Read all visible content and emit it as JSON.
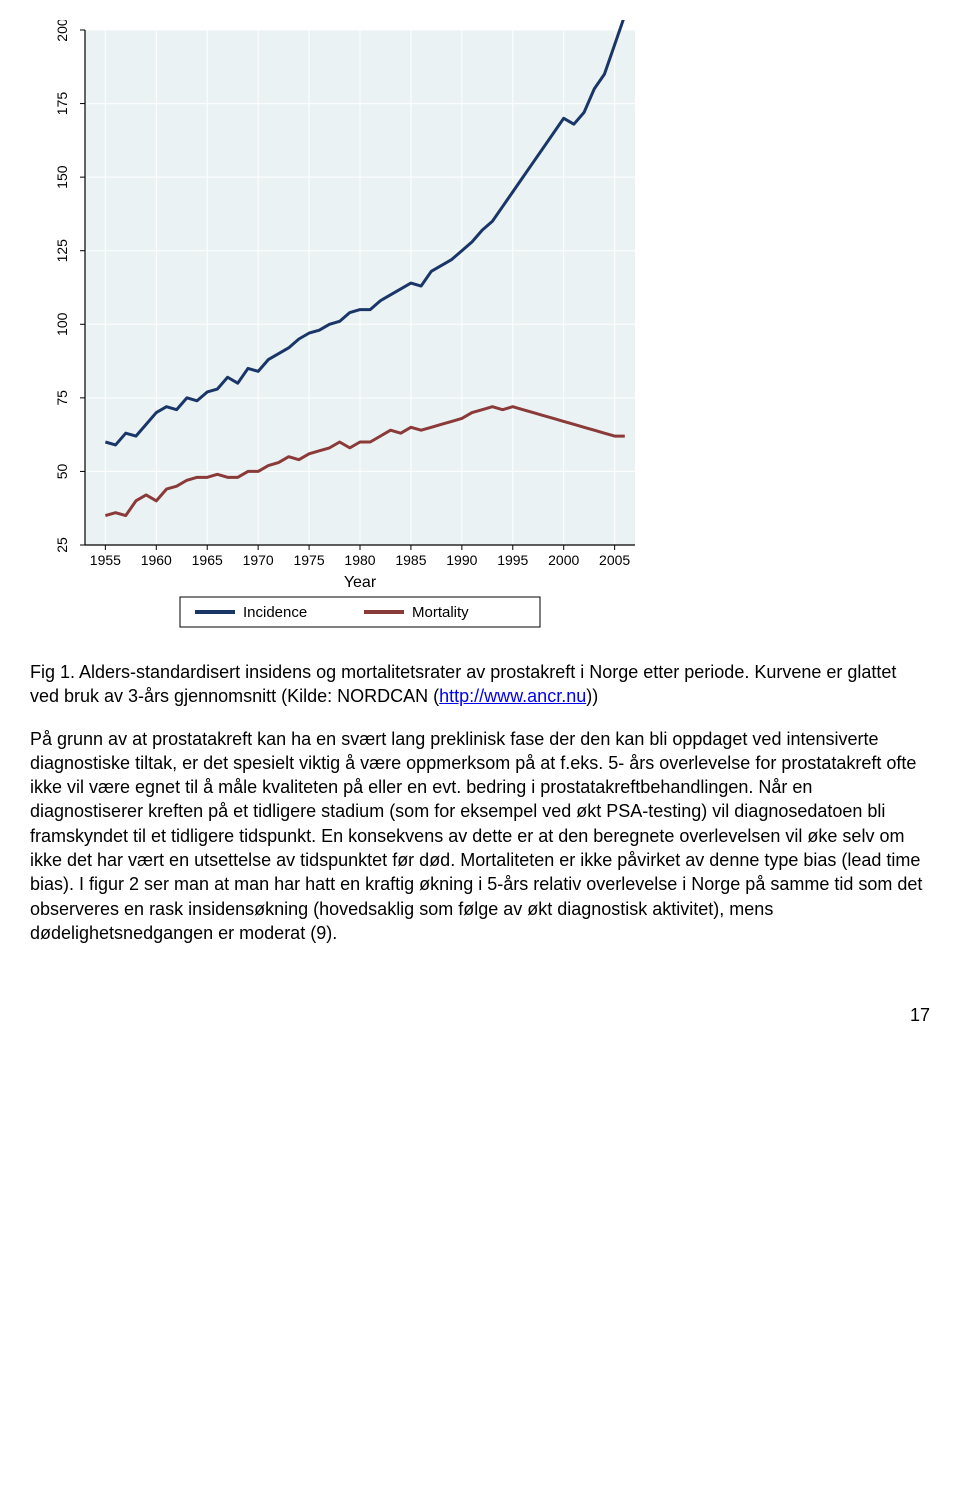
{
  "chart": {
    "type": "line",
    "plot_background": "#eaf2f3",
    "frame_color": "#ffffff",
    "grid_color": "#ffffff",
    "axis_line_color": "#000000",
    "xlabel": "Year",
    "xlabel_fontsize": 16,
    "ylabel": "",
    "xlim": [
      1953,
      2007
    ],
    "ylim": [
      25,
      200
    ],
    "xticks": [
      1955,
      1960,
      1965,
      1970,
      1975,
      1980,
      1985,
      1990,
      1995,
      2000,
      2005
    ],
    "yticks": [
      25,
      50,
      75,
      100,
      125,
      150,
      175,
      200
    ],
    "tick_fontsize": 14,
    "line_width": 3,
    "series": [
      {
        "name": "Incidence",
        "color": "#1a3668",
        "x": [
          1955,
          1956,
          1957,
          1958,
          1959,
          1960,
          1961,
          1962,
          1963,
          1964,
          1965,
          1966,
          1967,
          1968,
          1969,
          1970,
          1971,
          1972,
          1973,
          1974,
          1975,
          1976,
          1977,
          1978,
          1979,
          1980,
          1981,
          1982,
          1983,
          1984,
          1985,
          1986,
          1987,
          1988,
          1989,
          1990,
          1991,
          1992,
          1993,
          1994,
          1995,
          1996,
          1997,
          1998,
          1999,
          2000,
          2001,
          2002,
          2003,
          2004,
          2005,
          2006
        ],
        "y": [
          60,
          59,
          63,
          62,
          66,
          70,
          72,
          71,
          75,
          74,
          77,
          78,
          82,
          80,
          85,
          84,
          88,
          90,
          92,
          95,
          97,
          98,
          100,
          101,
          104,
          105,
          105,
          108,
          110,
          112,
          114,
          113,
          118,
          120,
          122,
          125,
          128,
          132,
          135,
          140,
          145,
          150,
          155,
          160,
          165,
          170,
          168,
          172,
          180,
          185,
          195,
          205
        ]
      },
      {
        "name": "Mortality",
        "color": "#8b3a3a",
        "x": [
          1955,
          1956,
          1957,
          1958,
          1959,
          1960,
          1961,
          1962,
          1963,
          1964,
          1965,
          1966,
          1967,
          1968,
          1969,
          1970,
          1971,
          1972,
          1973,
          1974,
          1975,
          1976,
          1977,
          1978,
          1979,
          1980,
          1981,
          1982,
          1983,
          1984,
          1985,
          1986,
          1987,
          1988,
          1989,
          1990,
          1991,
          1992,
          1993,
          1994,
          1995,
          1996,
          1997,
          1998,
          1999,
          2000,
          2001,
          2002,
          2003,
          2004,
          2005,
          2006
        ],
        "y": [
          35,
          36,
          35,
          40,
          42,
          40,
          44,
          45,
          47,
          48,
          48,
          49,
          48,
          48,
          50,
          50,
          52,
          53,
          55,
          54,
          56,
          57,
          58,
          60,
          58,
          60,
          60,
          62,
          64,
          63,
          65,
          64,
          65,
          66,
          67,
          68,
          70,
          71,
          72,
          71,
          72,
          71,
          70,
          69,
          68,
          67,
          66,
          65,
          64,
          63,
          62,
          62
        ]
      }
    ],
    "legend": {
      "border_color": "#000000",
      "background": "#ffffff",
      "fontsize": 15
    }
  },
  "caption": {
    "prefix": "Fig 1. Alders-standardisert insidens og mortalitetsrater av prostakreft i Norge etter periode. Kurvene er glattet ved bruk av 3-års gjennomsnitt (Kilde: NORDCAN (",
    "link_text": "http://www.ancr.nu",
    "suffix": "))"
  },
  "body": "På grunn av at prostatakreft kan ha en svært lang preklinisk fase der den kan bli oppdaget ved intensiverte diagnostiske tiltak, er det spesielt viktig å være oppmerksom på at f.eks. 5- års overlevelse for prostatakreft ofte ikke vil være egnet til å måle kvaliteten på eller en evt. bedring i prostatakreftbehandlingen. Når en diagnostiserer kreften på et tidligere stadium (som for eksempel ved økt PSA-testing) vil diagnosedatoen bli framskyndet til et tidligere tidspunkt. En konsekvens av dette er at den beregnete overlevelsen vil øke selv om ikke det har vært en utsettelse av tidspunktet før død. Mortaliteten er ikke påvirket av denne type bias (lead time bias). I figur 2 ser man at man har hatt en kraftig økning i 5-års relativ overlevelse i Norge på samme tid som det observeres en rask insidensøkning (hovedsaklig som følge av økt diagnostisk aktivitet), mens dødelighetsnedgangen er moderat (9).",
  "page_number": "17"
}
